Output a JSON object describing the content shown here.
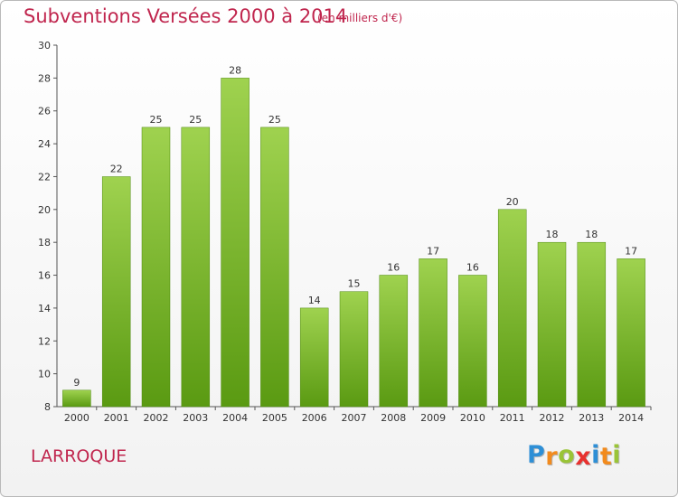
{
  "header": {
    "title": "Subventions Versées 2000 à 2014",
    "unit_note": "(en milliers d'€)"
  },
  "footer": {
    "commune": "LARROQUE",
    "logo": {
      "letters": [
        "P",
        "r",
        "o",
        "x",
        "i",
        "t",
        "i"
      ],
      "colors": [
        "#2e8fd6",
        "#f28b1e",
        "#9ac437",
        "#e8312f",
        "#2e8fd6",
        "#f28b1e",
        "#9ac437"
      ]
    }
  },
  "colors": {
    "title": "#c0264e",
    "bar_top": "#9fd24f",
    "bar_bottom": "#5a9a12",
    "axis": "#555555"
  },
  "chart_data": {
    "type": "bar",
    "title": "Subventions Versées 2000 à 2014",
    "subtitle": "(en milliers d'€)",
    "categories": [
      "2000",
      "2001",
      "2002",
      "2003",
      "2004",
      "2005",
      "2006",
      "2007",
      "2008",
      "2009",
      "2010",
      "2011",
      "2012",
      "2013",
      "2014"
    ],
    "values": [
      9,
      22,
      25,
      25,
      28,
      25,
      14,
      15,
      16,
      17,
      16,
      20,
      18,
      18,
      17
    ],
    "ylim": [
      8,
      30
    ],
    "yticks": [
      8,
      10,
      12,
      14,
      16,
      18,
      20,
      22,
      24,
      26,
      28,
      30
    ],
    "grid": false,
    "legend": "none",
    "xlabel": "",
    "ylabel": ""
  }
}
